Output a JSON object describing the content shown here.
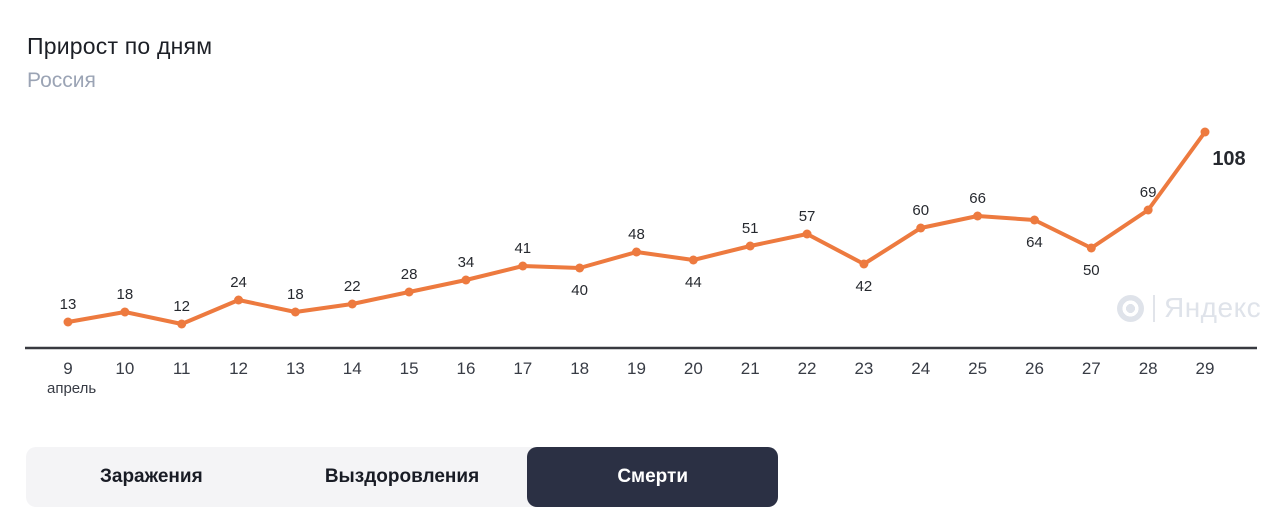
{
  "header": {
    "title": "Прирост по дням",
    "subtitle": "Россия"
  },
  "watermark": {
    "brand": "Яндекс"
  },
  "chart_data": {
    "type": "line",
    "title": "Прирост по дням",
    "region": "Россия",
    "selected_metric": "Смерти",
    "x_month_label": "апрель",
    "categories": [
      9,
      10,
      11,
      12,
      13,
      14,
      15,
      16,
      17,
      18,
      19,
      20,
      21,
      22,
      23,
      24,
      25,
      26,
      27,
      28,
      29
    ],
    "weekend_categories": [
      11,
      12,
      18,
      19,
      25,
      26
    ],
    "values": [
      13,
      18,
      12,
      24,
      18,
      22,
      28,
      34,
      41,
      40,
      48,
      44,
      51,
      57,
      42,
      60,
      66,
      64,
      50,
      69,
      108
    ],
    "label_positions": [
      "above",
      "above",
      "above",
      "above",
      "above",
      "above",
      "above",
      "above",
      "above",
      "below",
      "above",
      "below",
      "above",
      "above",
      "below",
      "above",
      "above",
      "below",
      "below",
      "above",
      "right"
    ],
    "ylim": [
      0,
      120
    ],
    "grid": false,
    "legend": "none",
    "line_color": "#ed7a3f",
    "point_color": "#ed7a3f",
    "highlight_last_color": "#d2413e",
    "weekend_label_color": "#d9544d",
    "axis_color": "#383a40"
  },
  "tabs": [
    {
      "label": "Заражения",
      "active": false
    },
    {
      "label": "Выздоровления",
      "active": false
    },
    {
      "label": "Смерти",
      "active": true
    }
  ],
  "tabs_style": {
    "bar_bg": "#f4f4f6",
    "active_bg": "#2b3044",
    "active_text": "#ffffff"
  }
}
